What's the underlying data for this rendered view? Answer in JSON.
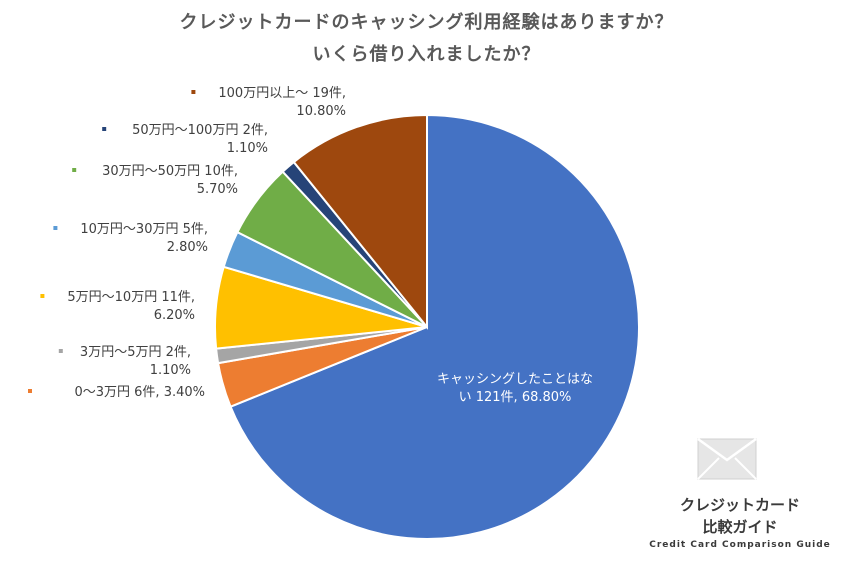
{
  "chart_data": {
    "type": "pie",
    "title": "クレジットカードのキャッシング利用経験はありますか？",
    "subtitle": "いくら借り入れましたか？",
    "slices": [
      {
        "label_lines": [
          "キャッシングしたことはな",
          "い 121件, 68.80%"
        ],
        "category": "キャッシングしたことはない",
        "count": 121,
        "percent": 68.8,
        "color": "#4472C4"
      },
      {
        "label_lines": [
          "0～3万円 6件, 3.40%"
        ],
        "category": "0～3万円",
        "count": 6,
        "percent": 3.4,
        "color": "#ED7D31"
      },
      {
        "label_lines": [
          "3万円～5万円 2件,",
          "1.10%"
        ],
        "category": "3万円～5万円",
        "count": 2,
        "percent": 1.1,
        "color": "#A5A5A5"
      },
      {
        "label_lines": [
          "5万円～10万円 11件,",
          "6.20%"
        ],
        "category": "5万円～10万円",
        "count": 11,
        "percent": 6.2,
        "color": "#FFC000"
      },
      {
        "label_lines": [
          "10万円～30万円 5件,",
          "2.80%"
        ],
        "category": "10万円～30万円",
        "count": 5,
        "percent": 2.8,
        "color": "#5B9BD5"
      },
      {
        "label_lines": [
          "30万円～50万円 10件,",
          "5.70%"
        ],
        "category": "30万円～50万円",
        "count": 10,
        "percent": 5.7,
        "color": "#70AD47"
      },
      {
        "label_lines": [
          "50万円～100万円 2件,",
          "1.10%"
        ],
        "category": "50万円～100万円",
        "count": 2,
        "percent": 1.1,
        "color": "#264478"
      },
      {
        "label_lines": [
          "100万円以上～ 19件,",
          "10.80%"
        ],
        "category": "100万円以上～",
        "count": 19,
        "percent": 10.8,
        "color": "#9E480E"
      }
    ]
  },
  "logo": {
    "line1": "クレジットカード",
    "line2": "比較ガイド",
    "tagline": "Credit Card Comparison Guide",
    "icon": "envelope-icon"
  }
}
